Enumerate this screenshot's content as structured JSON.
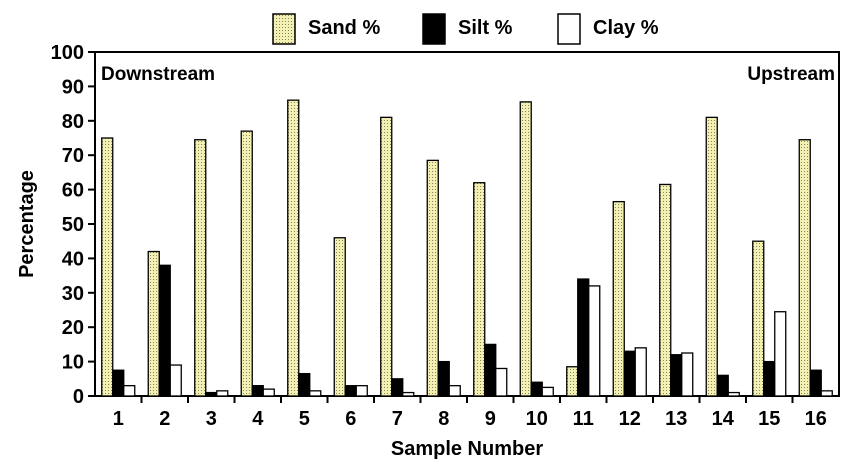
{
  "chart_data": {
    "type": "bar",
    "title": "",
    "xlabel": "Sample Number",
    "ylabel": "Percentage",
    "ylim": [
      0,
      100
    ],
    "yticks": [
      "0",
      "10",
      "20",
      "30",
      "40",
      "50",
      "60",
      "70",
      "80",
      "90",
      "100"
    ],
    "categories": [
      "1",
      "2",
      "3",
      "4",
      "5",
      "6",
      "7",
      "8",
      "9",
      "10",
      "11",
      "12",
      "13",
      "14",
      "15",
      "16"
    ],
    "series": [
      {
        "name": "Sand %",
        "color": "#f3f0b4",
        "pattern": "dotted",
        "values": [
          75,
          42,
          74.5,
          77,
          86,
          46,
          81,
          68.5,
          62,
          85.5,
          8.5,
          56.5,
          61.5,
          81,
          45,
          74.5
        ]
      },
      {
        "name": "Silt %",
        "color": "#000000",
        "values": [
          7.5,
          38,
          1,
          3,
          6.5,
          3,
          5,
          10,
          15,
          4,
          34,
          13,
          12,
          6,
          10,
          7.5
        ]
      },
      {
        "name": "Clay %",
        "color": "#ffffff",
        "values": [
          3,
          9,
          1.5,
          2,
          1.5,
          3,
          1,
          3,
          8,
          2.5,
          32,
          14,
          12.5,
          1,
          24.5,
          1.5
        ]
      }
    ],
    "annotations": {
      "left": "Downstream",
      "right": "Upstream"
    },
    "legend_position": "top",
    "grid": false
  }
}
